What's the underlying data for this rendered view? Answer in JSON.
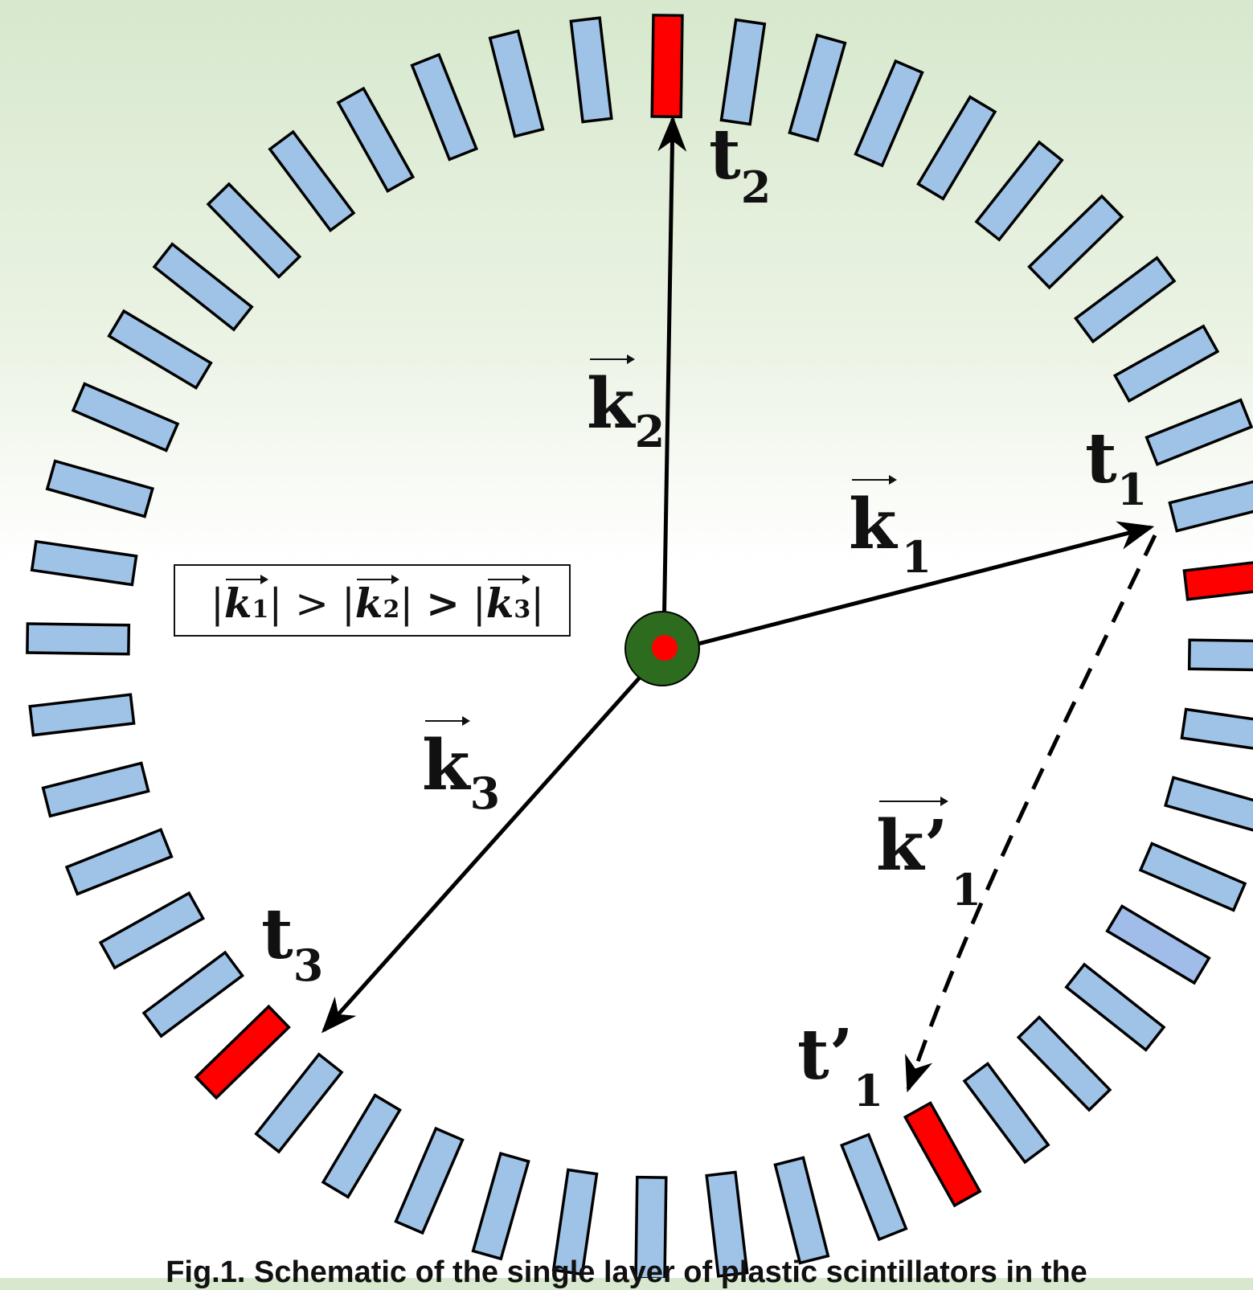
{
  "ring": {
    "segment_count": 48,
    "segment_color": "#9fc3e7",
    "hit_color": "#ff0000",
    "highlight_color": "#9fbde8"
  },
  "labels": {
    "t1": {
      "main": "t",
      "sub": "1"
    },
    "t2": {
      "main": "t",
      "sub": "2"
    },
    "t3": {
      "main": "t",
      "sub": "3"
    },
    "t1_prime": {
      "main": "t’",
      "sub": "1"
    },
    "k1": {
      "main": "k",
      "sub": "1"
    },
    "k2": {
      "main": "k",
      "sub": "2"
    },
    "k3": {
      "main": "k",
      "sub": "3"
    },
    "k1_prime": {
      "main": "k’",
      "sub": "1"
    }
  },
  "relation": {
    "k1": "k",
    "k1_sub": "1",
    "k2": "k",
    "k2_sub": "2",
    "k3": "k",
    "k3_sub": "3",
    "op1": ">",
    "op2": ">"
  },
  "source": {
    "outer_color": "#2d6b1f",
    "inner_color": "#ff0000"
  },
  "caption": "Fig.1. Schematic of the single layer of plastic scintillators in the"
}
